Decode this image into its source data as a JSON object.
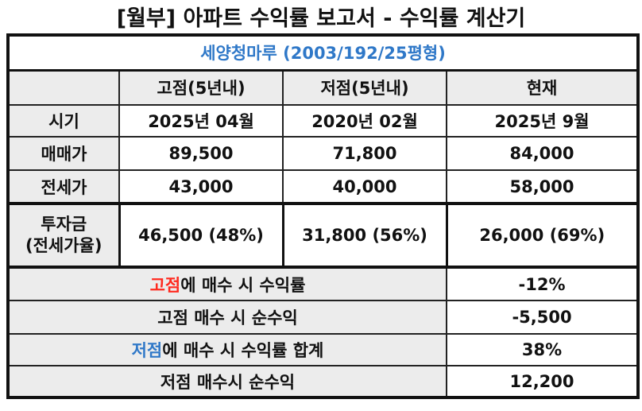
{
  "title": "[월부] 아파트 수익률 보고서 - 수익률 계산기",
  "subtitle": "세양청마루 (2003/192/25평형)",
  "header": {
    "corner": "",
    "high": "고점(5년내)",
    "low": "저점(5년내)",
    "current": "현재"
  },
  "rows": {
    "period": {
      "label": "시기",
      "high": "2025년 04월",
      "low": "2020년 02월",
      "current": "2025년 9월"
    },
    "sale": {
      "label": "매매가",
      "high": "89,500",
      "low": "71,800",
      "current": "84,000"
    },
    "jeonse": {
      "label": "전세가",
      "high": "43,000",
      "low": "40,000",
      "current": "58,000"
    },
    "invest": {
      "label_line1": "투자금",
      "label_line2": "(전세가율)",
      "high": "46,500 (48%)",
      "low": "31,800 (56%)",
      "current": "26,000 (69%)"
    }
  },
  "summary": {
    "high_rate": {
      "label_accent": "고점",
      "label_rest": "에 매수 시 수익률",
      "value": "-12%"
    },
    "high_profit": {
      "label": "고점 매수 시 순수익",
      "value": "-5,500"
    },
    "low_rate": {
      "label_accent": "저점",
      "label_rest": "에 매수 시 수익률 합계",
      "value": "38%"
    },
    "low_profit": {
      "label": "저점 매수시 순수익",
      "value": "12,200"
    }
  },
  "colors": {
    "high": "#ff2a1f",
    "low": "#2f78c8",
    "header_bg": "#ececec"
  }
}
